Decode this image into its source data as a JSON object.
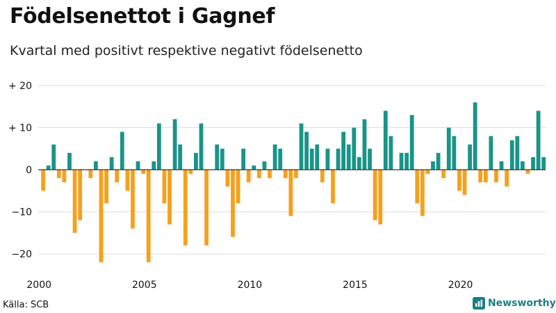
{
  "title": "Födelsenettot i Gagnef",
  "subtitle": "Kvartal med positivt respektive negativt födelsenetto",
  "source": "Källa: SCB",
  "brand": "Newsworthy",
  "colors": {
    "positive": "#1a9488",
    "negative": "#f5a11d",
    "grid": "#dddddd",
    "zero": "#333333"
  },
  "chart_data": {
    "type": "bar",
    "x_start": "2000 Q1",
    "x_end": "2024 Q1",
    "ylim": [
      -22,
      20
    ],
    "yticks": [
      20,
      10,
      0,
      -10,
      -20
    ],
    "ytick_labels": [
      "+ 20",
      "+ 10",
      "0",
      "−10",
      "−20"
    ],
    "xtick_labels": [
      "2000",
      "2005",
      "2010",
      "2015",
      "2020"
    ],
    "grid": true,
    "values": [
      -5,
      1,
      6,
      -2,
      -3,
      4,
      -15,
      -12,
      0,
      -2,
      2,
      -22,
      -8,
      3,
      -3,
      9,
      -5,
      -14,
      2,
      -1,
      -22,
      2,
      11,
      -8,
      -13,
      12,
      6,
      -18,
      -1,
      4,
      11,
      -18,
      0,
      6,
      5,
      -4,
      -16,
      -8,
      5,
      -3,
      1,
      -2,
      2,
      -2,
      6,
      5,
      -2,
      -11,
      -2,
      11,
      9,
      5,
      6,
      -3,
      5,
      -8,
      5,
      9,
      6,
      10,
      3,
      12,
      5,
      -12,
      -13,
      14,
      8,
      0,
      4,
      4,
      13,
      -8,
      -11,
      -1,
      2,
      4,
      -2,
      10,
      8,
      -5,
      -6,
      6,
      16,
      -3,
      -3,
      8,
      -3,
      2,
      -4,
      7,
      8,
      2,
      -1,
      3,
      14,
      3,
      0
    ]
  }
}
